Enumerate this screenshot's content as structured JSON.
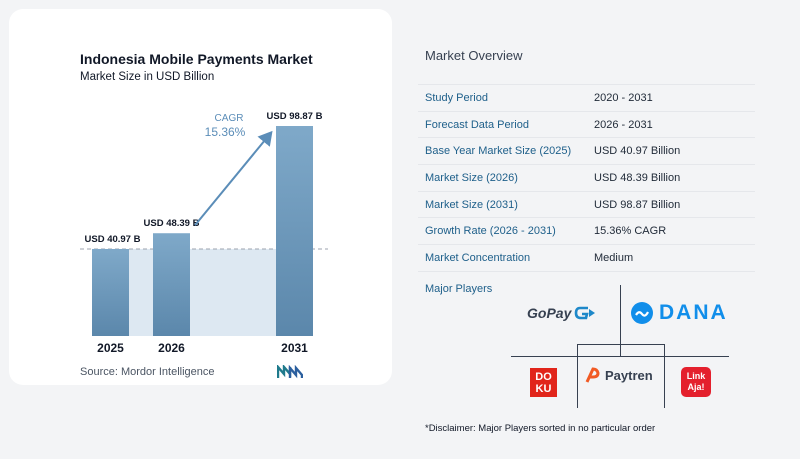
{
  "chart": {
    "title": "Indonesia Mobile Payments Market",
    "subtitle": "Market Size in USD Billion",
    "source": "Source:  Mordor Intelligence",
    "cagr_label": "CAGR",
    "cagr_value": "15.36%",
    "bar_labels": [
      "USD 40.97 B",
      "USD 48.39 B",
      "USD 98.87 B"
    ]
  },
  "chart_data": {
    "type": "bar",
    "categories": [
      "2025",
      "2026",
      "2031"
    ],
    "values": [
      40.97,
      48.39,
      98.87
    ],
    "title": "Indonesia Mobile Payments Market",
    "subtitle": "Market Size in USD Billion",
    "xlabel": "",
    "ylabel": "",
    "ylim": [
      0,
      98.87
    ],
    "grid": false,
    "colors": {
      "bar_top": "#7fa9c9",
      "bar_bottom": "#5b87ab",
      "highlight": "#dde8f2",
      "arrow": "#5b8db8"
    }
  },
  "overview": {
    "title": "Market Overview",
    "rows": [
      {
        "label": "Study Period",
        "value": "2020 - 2031"
      },
      {
        "label": "Forecast Data Period",
        "value": "2026 - 2031"
      },
      {
        "label": "Base Year Market Size (2025)",
        "value": "USD 40.97 Billion"
      },
      {
        "label": "Market Size (2026)",
        "value": "USD 48.39 Billion"
      },
      {
        "label": "Market Size (2031)",
        "value": "USD 98.87 Billion"
      },
      {
        "label": "Growth Rate (2026 - 2031)",
        "value": "15.36% CAGR"
      },
      {
        "label": "Market Concentration",
        "value": "Medium"
      }
    ]
  },
  "players": {
    "title": "Major Players",
    "gopay": "GoPay",
    "dana": "DANA",
    "doku_top": "DO",
    "doku_bottom": "KU",
    "paytren": "Paytren",
    "linkaja_top": "Link",
    "linkaja_bottom": "Aja!"
  },
  "disclaimer": "*Disclaimer: Major Players sorted in no particular order"
}
